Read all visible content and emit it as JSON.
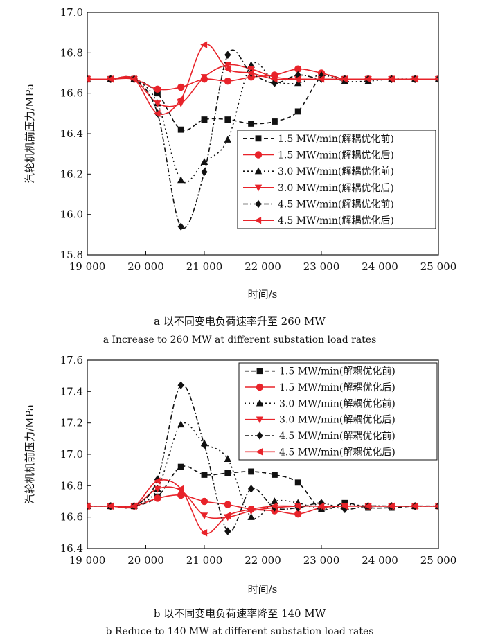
{
  "chart_data": [
    {
      "type": "line",
      "caption_cn": "a  以不同变电负荷速率升至 260 MW",
      "caption_en": "a  Increase to 260 MW at different substation load rates",
      "xlabel": "时间/s",
      "ylabel": "汽轮机机前压力/MPa",
      "xlim": [
        19000,
        25000
      ],
      "ylim": [
        15.8,
        17.0
      ],
      "xticks": [
        19000,
        20000,
        21000,
        22000,
        23000,
        24000,
        25000
      ],
      "xtick_labels": [
        "19 000",
        "20 000",
        "21 000",
        "22 000",
        "23 000",
        "24 000",
        "25 000"
      ],
      "yticks": [
        15.8,
        16.0,
        16.2,
        16.4,
        16.6,
        16.8,
        17.0
      ],
      "ytick_labels": [
        "15.8",
        "16.0",
        "16.2",
        "16.4",
        "16.6",
        "16.8",
        "17.0"
      ],
      "legend_position": "center-right",
      "series": [
        {
          "name": "1.5 MW/min(解耦优化前)",
          "color": "#111111",
          "dash": "6,4",
          "marker": "square",
          "x": [
            19000,
            19400,
            19800,
            20200,
            20600,
            21000,
            21400,
            21800,
            22200,
            22600,
            23000,
            23400,
            23800,
            24200,
            24600,
            25000
          ],
          "y": [
            16.67,
            16.67,
            16.67,
            16.6,
            16.42,
            16.47,
            16.47,
            16.45,
            16.46,
            16.51,
            16.68,
            16.67,
            16.67,
            16.67,
            16.67,
            16.67
          ]
        },
        {
          "name": "1.5 MW/min(解耦优化后)",
          "color": "#e8232a",
          "dash": "",
          "marker": "circle",
          "x": [
            19000,
            19400,
            19800,
            20200,
            20600,
            21000,
            21400,
            21800,
            22200,
            22600,
            23000,
            23400,
            23800,
            24200,
            24600,
            25000
          ],
          "y": [
            16.67,
            16.67,
            16.67,
            16.62,
            16.63,
            16.67,
            16.66,
            16.68,
            16.69,
            16.72,
            16.7,
            16.67,
            16.67,
            16.67,
            16.67,
            16.67
          ]
        },
        {
          "name": "3.0 MW/min(解耦优化前)",
          "color": "#111111",
          "dash": "2,4",
          "marker": "triangle-up",
          "x": [
            19000,
            19400,
            19800,
            20200,
            20600,
            21000,
            21400,
            21800,
            22200,
            22600,
            23000,
            23400,
            23800,
            24200,
            24600,
            25000
          ],
          "y": [
            16.67,
            16.67,
            16.67,
            16.55,
            16.17,
            16.26,
            16.37,
            16.74,
            16.66,
            16.65,
            16.69,
            16.66,
            16.66,
            16.67,
            16.67,
            16.67
          ]
        },
        {
          "name": "3.0 MW/min(解耦优化后)",
          "color": "#e8232a",
          "dash": "",
          "marker": "triangle-down",
          "x": [
            19000,
            19400,
            19800,
            20200,
            20600,
            21000,
            21400,
            21800,
            22200,
            22600,
            23000,
            23400,
            23800,
            24200,
            24600,
            25000
          ],
          "y": [
            16.67,
            16.67,
            16.67,
            16.55,
            16.55,
            16.68,
            16.74,
            16.72,
            16.68,
            16.67,
            16.67,
            16.67,
            16.67,
            16.67,
            16.67,
            16.67
          ]
        },
        {
          "name": "4.5 MW/min(解耦优化前)",
          "color": "#111111",
          "dash": "7,3,2,3",
          "marker": "diamond",
          "x": [
            19000,
            19400,
            19800,
            20200,
            20600,
            21000,
            21400,
            21800,
            22200,
            22600,
            23000,
            23400,
            23800,
            24200,
            24600,
            25000
          ],
          "y": [
            16.67,
            16.67,
            16.67,
            16.5,
            15.94,
            16.21,
            16.79,
            16.7,
            16.65,
            16.69,
            16.67,
            16.67,
            16.67,
            16.67,
            16.67,
            16.67
          ]
        },
        {
          "name": "4.5 MW/min(解耦优化后)",
          "color": "#e8232a",
          "dash": "",
          "marker": "triangle-left",
          "x": [
            19000,
            19400,
            19800,
            20200,
            20600,
            21000,
            21400,
            21800,
            22200,
            22600,
            23000,
            23400,
            23800,
            24200,
            24600,
            25000
          ],
          "y": [
            16.67,
            16.67,
            16.67,
            16.5,
            16.57,
            16.84,
            16.72,
            16.7,
            16.67,
            16.67,
            16.67,
            16.67,
            16.67,
            16.67,
            16.67,
            16.67
          ]
        }
      ]
    },
    {
      "type": "line",
      "caption_cn": "b  以不同变电负荷速率降至 140 MW",
      "caption_en": "b  Reduce to 140 MW at different substation load rates",
      "xlabel": "时间/s",
      "ylabel": "汽轮机机前压力/MPa",
      "xlim": [
        19000,
        25000
      ],
      "ylim": [
        16.4,
        17.6
      ],
      "xticks": [
        19000,
        20000,
        21000,
        22000,
        23000,
        24000,
        25000
      ],
      "xtick_labels": [
        "19 000",
        "20 000",
        "21 000",
        "22 000",
        "23 000",
        "24 000",
        "25 000"
      ],
      "yticks": [
        16.4,
        16.6,
        16.8,
        17.0,
        17.2,
        17.4,
        17.6
      ],
      "ytick_labels": [
        "16.4",
        "16.6",
        "16.8",
        "17.0",
        "17.2",
        "17.4",
        "17.6"
      ],
      "legend_position": "top-right",
      "series": [
        {
          "name": "1.5 MW/min(解耦优化前)",
          "color": "#111111",
          "dash": "6,4",
          "marker": "square",
          "x": [
            19000,
            19400,
            19800,
            20200,
            20600,
            21000,
            21400,
            21800,
            22200,
            22600,
            23000,
            23400,
            23800,
            24200,
            24600,
            25000
          ],
          "y": [
            16.67,
            16.67,
            16.67,
            16.73,
            16.92,
            16.87,
            16.88,
            16.89,
            16.87,
            16.82,
            16.65,
            16.69,
            16.66,
            16.66,
            16.67,
            16.67
          ]
        },
        {
          "name": "1.5 MW/min(解耦优化后)",
          "color": "#e8232a",
          "dash": "",
          "marker": "circle",
          "x": [
            19000,
            19400,
            19800,
            20200,
            20600,
            21000,
            21400,
            21800,
            22200,
            22600,
            23000,
            23400,
            23800,
            24200,
            24600,
            25000
          ],
          "y": [
            16.67,
            16.67,
            16.67,
            16.72,
            16.74,
            16.7,
            16.68,
            16.65,
            16.64,
            16.62,
            16.66,
            16.67,
            16.67,
            16.67,
            16.67,
            16.67
          ]
        },
        {
          "name": "3.0 MW/min(解耦优化前)",
          "color": "#111111",
          "dash": "2,4",
          "marker": "triangle-up",
          "x": [
            19000,
            19400,
            19800,
            20200,
            20600,
            21000,
            21400,
            21800,
            22200,
            22600,
            23000,
            23400,
            23800,
            24200,
            24600,
            25000
          ],
          "y": [
            16.67,
            16.67,
            16.67,
            16.78,
            17.19,
            17.07,
            16.97,
            16.6,
            16.7,
            16.69,
            16.65,
            16.68,
            16.67,
            16.67,
            16.67,
            16.67
          ]
        },
        {
          "name": "3.0 MW/min(解耦优化后)",
          "color": "#e8232a",
          "dash": "",
          "marker": "triangle-down",
          "x": [
            19000,
            19400,
            19800,
            20200,
            20600,
            21000,
            21400,
            21800,
            22200,
            22600,
            23000,
            23400,
            23800,
            24200,
            24600,
            25000
          ],
          "y": [
            16.67,
            16.67,
            16.67,
            16.78,
            16.77,
            16.61,
            16.6,
            16.64,
            16.66,
            16.67,
            16.67,
            16.67,
            16.67,
            16.67,
            16.67,
            16.67
          ]
        },
        {
          "name": "4.5 MW/min(解耦优化前)",
          "color": "#111111",
          "dash": "7,3,2,3",
          "marker": "diamond",
          "x": [
            19000,
            19400,
            19800,
            20200,
            20600,
            21000,
            21400,
            21800,
            22200,
            22600,
            23000,
            23400,
            23800,
            24200,
            24600,
            25000
          ],
          "y": [
            16.67,
            16.67,
            16.67,
            16.84,
            17.44,
            17.06,
            16.51,
            16.78,
            16.66,
            16.66,
            16.69,
            16.65,
            16.67,
            16.67,
            16.67,
            16.67
          ]
        },
        {
          "name": "4.5 MW/min(解耦优化后)",
          "color": "#e8232a",
          "dash": "",
          "marker": "triangle-left",
          "x": [
            19000,
            19400,
            19800,
            20200,
            20600,
            21000,
            21400,
            21800,
            22200,
            22600,
            23000,
            23400,
            23800,
            24200,
            24600,
            25000
          ],
          "y": [
            16.67,
            16.67,
            16.67,
            16.83,
            16.78,
            16.5,
            16.61,
            16.65,
            16.67,
            16.67,
            16.67,
            16.67,
            16.67,
            16.67,
            16.67,
            16.67
          ]
        }
      ]
    }
  ]
}
